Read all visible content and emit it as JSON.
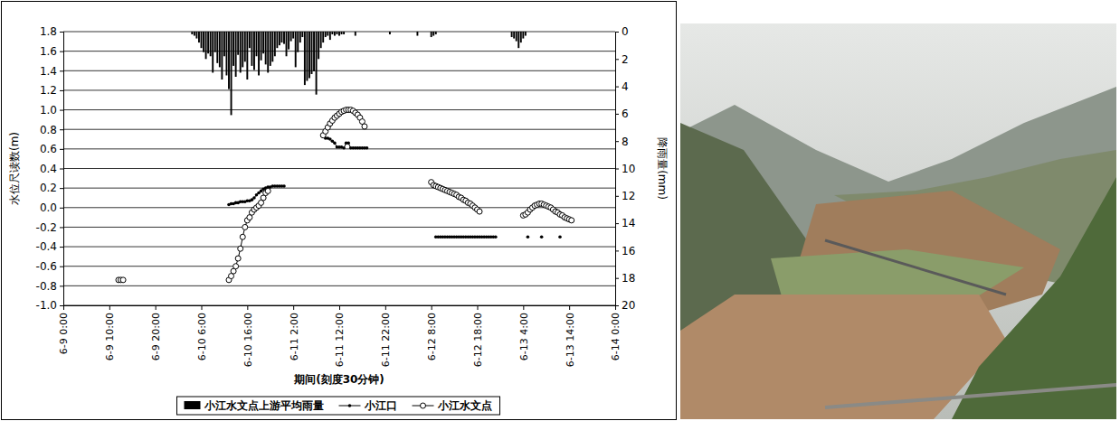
{
  "chart_data": {
    "type": "bar-line",
    "x_label": "期间(刻度30分钟)",
    "y_label": "水位尺读数(m)",
    "y2_label": "降雨量(mm)",
    "xlim": [
      0,
      120
    ],
    "xticks": [
      {
        "value": 0,
        "label": "6-9 0:00"
      },
      {
        "value": 10,
        "label": "6-9 10:00"
      },
      {
        "value": 20,
        "label": "6-9 20:00"
      },
      {
        "value": 30,
        "label": "6-10 6:00"
      },
      {
        "value": 40,
        "label": "6-10 16:00"
      },
      {
        "value": 50,
        "label": "6-11 2:00"
      },
      {
        "value": 60,
        "label": "6-11 12:00"
      },
      {
        "value": 70,
        "label": "6-11 22:00"
      },
      {
        "value": 80,
        "label": "6-12 8:00"
      },
      {
        "value": 90,
        "label": "6-12 18:00"
      },
      {
        "value": 100,
        "label": "6-13 4:00"
      },
      {
        "value": 110,
        "label": "6-13 14:00"
      },
      {
        "value": 120,
        "label": "6-14 0:00"
      }
    ],
    "ylim": [
      -1,
      1.8
    ],
    "yticks": [
      {
        "value": -1,
        "label": "-1.0"
      },
      -0.8,
      -0.6,
      -0.4,
      -0.2,
      {
        "value": 0,
        "label": "0.0"
      },
      0.2,
      0.4,
      0.6,
      0.8,
      {
        "value": 1,
        "label": "1.0"
      },
      1.2,
      1.4,
      1.6,
      1.8
    ],
    "y2lim": [
      20,
      0
    ],
    "y2ticks": [
      0,
      2,
      4,
      6,
      8,
      10,
      12,
      14,
      16,
      18,
      20
    ],
    "grid": true,
    "legend": "bottom",
    "series": [
      {
        "name": "小江水文点上游平均雨量",
        "type": "bar",
        "axis": "y2",
        "color": "#000000",
        "x": [
          28,
          28.5,
          29,
          29.5,
          30,
          30.5,
          31,
          31.5,
          32,
          32.5,
          33,
          33.5,
          34,
          34.5,
          35,
          35.5,
          36,
          36.5,
          37,
          37.5,
          38,
          38.5,
          39,
          39.5,
          40,
          40.5,
          41,
          41.5,
          42,
          42.5,
          43,
          43.5,
          44,
          44.5,
          45,
          45.5,
          46,
          46.5,
          47,
          47.5,
          48,
          48.5,
          49,
          49.5,
          50,
          50.5,
          51,
          51.5,
          52,
          52.5,
          53,
          53.5,
          54,
          54.5,
          55,
          55.5,
          56,
          56.5,
          57,
          57.5,
          58,
          58.5,
          59,
          59.5,
          60,
          60.5,
          61,
          63.5,
          71,
          77,
          80,
          80.5,
          81,
          97.5,
          98,
          98.5,
          99,
          99.5,
          100,
          100.5
        ],
        "values": [
          0.2,
          0.3,
          0.5,
          0.8,
          1.2,
          1.5,
          2.0,
          1.6,
          1.8,
          3.0,
          1.5,
          2.3,
          2.6,
          3.5,
          1.8,
          3.2,
          4.2,
          6.1,
          2.5,
          3.3,
          1.7,
          3.0,
          2.6,
          2.2,
          3.5,
          1.2,
          2.5,
          2.8,
          1.8,
          3.2,
          2.1,
          1.6,
          2.4,
          3.0,
          2.5,
          2.2,
          1.8,
          1.2,
          1.0,
          0.8,
          0.9,
          1.8,
          1.3,
          0.7,
          0.5,
          2.6,
          1.5,
          0.8,
          0.4,
          3.9,
          3.6,
          3.4,
          3.1,
          2.9,
          4.6,
          2.0,
          1.2,
          0.8,
          0.4,
          0.3,
          0.6,
          0.2,
          0.3,
          0.2,
          0.3,
          0.2,
          0.2,
          0.3,
          0.2,
          0.3,
          0.4,
          0.3,
          0.2,
          0.4,
          0.5,
          0.7,
          1.2,
          0.8,
          0.5,
          0.3
        ]
      },
      {
        "name": "小江口",
        "type": "line",
        "color": "#000000",
        "marker": "dot",
        "x": [
          36,
          36.5,
          37,
          37.5,
          38,
          38.5,
          39,
          39.5,
          40,
          40.5,
          41,
          41.5,
          42,
          42.5,
          43,
          43.5,
          44,
          44.5,
          45,
          45.5,
          46,
          46.5,
          47,
          47.5,
          48,
          null,
          57,
          57.5,
          58,
          58.5,
          59,
          59.5,
          60,
          60.5,
          61,
          61.5,
          62,
          62.5,
          63,
          63.5,
          64,
          64.5,
          65,
          65.5,
          66,
          null,
          81,
          81.5,
          82,
          82.5,
          83,
          83.5,
          84,
          84.5,
          85,
          85.5,
          86,
          86.5,
          87,
          87.5,
          88,
          88.5,
          89,
          89.5,
          90,
          90.5,
          91,
          91.5,
          92,
          92.5,
          93,
          93.5,
          94,
          null,
          101,
          null,
          104,
          null,
          108
        ],
        "values": [
          0.03,
          0.04,
          0.04,
          0.05,
          0.05,
          0.06,
          0.06,
          0.06,
          0.07,
          0.07,
          0.08,
          0.1,
          0.13,
          0.15,
          0.17,
          0.19,
          0.2,
          0.21,
          0.21,
          0.22,
          0.22,
          0.22,
          0.22,
          0.22,
          0.22,
          null,
          0.71,
          0.71,
          0.7,
          0.68,
          0.66,
          0.62,
          0.62,
          0.62,
          0.61,
          0.66,
          0.66,
          0.61,
          0.61,
          0.61,
          0.61,
          0.61,
          0.61,
          0.61,
          0.61,
          null,
          -0.3,
          -0.3,
          -0.3,
          -0.3,
          -0.3,
          -0.3,
          -0.3,
          -0.3,
          -0.3,
          -0.3,
          -0.3,
          -0.3,
          -0.3,
          -0.3,
          -0.3,
          -0.3,
          -0.3,
          -0.3,
          -0.3,
          -0.3,
          -0.3,
          -0.3,
          -0.3,
          -0.3,
          -0.3,
          -0.3,
          -0.3,
          null,
          -0.3,
          null,
          -0.3,
          null,
          -0.3
        ]
      },
      {
        "name": "小江水文点",
        "type": "line",
        "color": "#000000",
        "marker": "circle",
        "x": [
          12,
          12.5,
          13,
          null,
          36,
          36.5,
          37,
          37.5,
          38,
          38.5,
          39,
          39.5,
          40,
          40.5,
          41,
          41.5,
          42,
          42.5,
          43,
          43.5,
          44,
          44.5,
          null,
          56.5,
          57,
          57.5,
          58,
          58.5,
          59,
          59.5,
          60,
          60.5,
          61,
          61.5,
          62,
          62.5,
          63,
          63.5,
          64,
          64.5,
          65,
          65.5,
          null,
          80,
          80.5,
          81,
          81.5,
          82,
          82.5,
          83,
          83.5,
          84,
          84.5,
          85,
          85.5,
          86,
          86.5,
          87,
          87.5,
          88,
          88.5,
          89,
          89.5,
          90,
          90.5,
          null,
          100,
          100.5,
          101,
          101.5,
          102,
          102.5,
          103,
          103.5,
          104,
          104.5,
          105,
          105.5,
          106,
          106.5,
          107,
          107.5,
          108,
          108.5,
          109,
          109.5,
          110,
          110.5
        ],
        "values": [
          -0.74,
          -0.74,
          -0.74,
          null,
          -0.74,
          -0.7,
          -0.65,
          -0.6,
          -0.52,
          -0.42,
          -0.3,
          -0.2,
          -0.13,
          -0.1,
          -0.05,
          -0.02,
          0.0,
          0.02,
          0.05,
          0.1,
          0.15,
          0.17,
          null,
          0.74,
          0.78,
          0.82,
          0.86,
          0.89,
          0.92,
          0.94,
          0.96,
          0.98,
          0.99,
          1.0,
          1.0,
          1.0,
          0.99,
          0.97,
          0.95,
          0.92,
          0.88,
          0.83,
          null,
          0.26,
          0.23,
          0.22,
          0.21,
          0.2,
          0.19,
          0.18,
          0.17,
          0.16,
          0.15,
          0.14,
          0.13,
          0.11,
          0.1,
          0.08,
          0.07,
          0.05,
          0.04,
          0.02,
          0.0,
          -0.02,
          -0.04,
          null,
          -0.08,
          -0.07,
          -0.05,
          -0.02,
          0.0,
          0.02,
          0.03,
          0.04,
          0.04,
          0.03,
          0.02,
          0.01,
          0.0,
          -0.02,
          -0.04,
          -0.05,
          -0.07,
          -0.08,
          -0.1,
          -0.11,
          -0.12,
          -0.13
        ]
      }
    ]
  }
}
